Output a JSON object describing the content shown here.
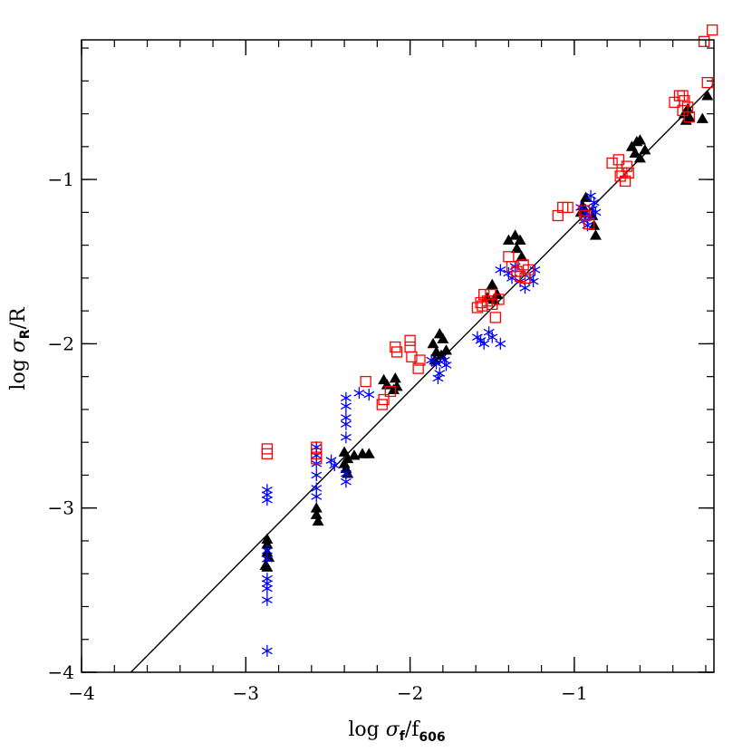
{
  "chart_data": {
    "type": "scatter",
    "xlabel": {
      "prefix": "log ",
      "greek": "σ",
      "sub1": "f",
      "mid": "/f",
      "sub2": "606"
    },
    "ylabel": {
      "prefix": "log ",
      "greek": "σ",
      "sub1": "R",
      "mid": "/R"
    },
    "xlim": [
      -4,
      -0.15
    ],
    "ylim": [
      -4,
      -0.15
    ],
    "xticks": [
      -4,
      -3,
      -2,
      -1
    ],
    "xtick_labels": [
      "−4",
      "−3",
      "−2",
      "−1"
    ],
    "yticks": [
      -4,
      -3,
      -2,
      -1
    ],
    "ytick_labels": [
      "−4",
      "−3",
      "−2",
      "−1"
    ],
    "minor_step": 0.2,
    "grid": false,
    "legend": "none",
    "fit_line": {
      "x": [
        -3.7,
        -0.15
      ],
      "y": [
        -4.0,
        -0.42
      ],
      "color": "#000000"
    },
    "series": [
      {
        "marker": "triangle",
        "color": "#000000",
        "points": [
          [
            -2.87,
            -3.19
          ],
          [
            -2.87,
            -3.22
          ],
          [
            -2.87,
            -3.27
          ],
          [
            -2.86,
            -3.3
          ],
          [
            -2.88,
            -3.35
          ],
          [
            -2.87,
            -3.36
          ],
          [
            -2.57,
            -3.0
          ],
          [
            -2.57,
            -3.04
          ],
          [
            -2.56,
            -3.08
          ],
          [
            -2.4,
            -2.66
          ],
          [
            -2.38,
            -2.7
          ],
          [
            -2.4,
            -2.73
          ],
          [
            -2.39,
            -2.76
          ],
          [
            -2.38,
            -2.79
          ],
          [
            -2.34,
            -2.68
          ],
          [
            -2.29,
            -2.67
          ],
          [
            -2.25,
            -2.67
          ],
          [
            -2.16,
            -2.22
          ],
          [
            -2.14,
            -2.25
          ],
          [
            -2.09,
            -2.21
          ],
          [
            -2.08,
            -2.26
          ],
          [
            -2.1,
            -2.28
          ],
          [
            -1.82,
            -1.94
          ],
          [
            -1.8,
            -1.97
          ],
          [
            -1.86,
            -2.0
          ],
          [
            -1.84,
            -2.05
          ],
          [
            -1.85,
            -2.1
          ],
          [
            -1.81,
            -2.07
          ],
          [
            -1.78,
            -2.04
          ],
          [
            -1.5,
            -1.64
          ],
          [
            -1.47,
            -1.7
          ],
          [
            -1.53,
            -1.72
          ],
          [
            -1.49,
            -1.73
          ],
          [
            -1.4,
            -1.37
          ],
          [
            -1.36,
            -1.34
          ],
          [
            -1.33,
            -1.37
          ],
          [
            -1.35,
            -1.42
          ],
          [
            -1.32,
            -1.47
          ],
          [
            -0.93,
            -1.11
          ],
          [
            -0.95,
            -1.16
          ],
          [
            -0.96,
            -1.2
          ],
          [
            -0.89,
            -1.22
          ],
          [
            -0.88,
            -1.28
          ],
          [
            -0.87,
            -1.34
          ],
          [
            -0.65,
            -0.8
          ],
          [
            -0.62,
            -0.77
          ],
          [
            -0.6,
            -0.76
          ],
          [
            -0.63,
            -0.84
          ],
          [
            -0.6,
            -0.87
          ],
          [
            -0.57,
            -0.82
          ],
          [
            -0.33,
            -0.6
          ],
          [
            -0.31,
            -0.57
          ],
          [
            -0.3,
            -0.62
          ],
          [
            -0.32,
            -0.64
          ],
          [
            -0.22,
            -0.63
          ],
          [
            -0.19,
            -0.49
          ]
        ]
      },
      {
        "marker": "asterisk",
        "color": "#0000ff",
        "points": [
          [
            -2.87,
            -2.89
          ],
          [
            -2.87,
            -2.92
          ],
          [
            -2.87,
            -2.95
          ],
          [
            -2.87,
            -3.26
          ],
          [
            -2.87,
            -3.31
          ],
          [
            -2.87,
            -3.43
          ],
          [
            -2.87,
            -3.46
          ],
          [
            -2.87,
            -3.49
          ],
          [
            -2.87,
            -3.56
          ],
          [
            -2.87,
            -3.87
          ],
          [
            -2.57,
            -2.63
          ],
          [
            -2.57,
            -2.68
          ],
          [
            -2.57,
            -2.73
          ],
          [
            -2.57,
            -2.8
          ],
          [
            -2.57,
            -2.88
          ],
          [
            -2.57,
            -2.93
          ],
          [
            -2.48,
            -2.71
          ],
          [
            -2.46,
            -2.74
          ],
          [
            -2.39,
            -2.33
          ],
          [
            -2.39,
            -2.38
          ],
          [
            -2.39,
            -2.45
          ],
          [
            -2.39,
            -2.49
          ],
          [
            -2.39,
            -2.57
          ],
          [
            -2.39,
            -2.79
          ],
          [
            -2.39,
            -2.84
          ],
          [
            -2.31,
            -2.3
          ],
          [
            -2.25,
            -2.31
          ],
          [
            -1.87,
            -2.1
          ],
          [
            -1.84,
            -2.12
          ],
          [
            -1.82,
            -2.18
          ],
          [
            -1.83,
            -2.21
          ],
          [
            -1.78,
            -2.13
          ],
          [
            -1.79,
            -2.1
          ],
          [
            -1.59,
            -1.96
          ],
          [
            -1.57,
            -1.98
          ],
          [
            -1.55,
            -2.0
          ],
          [
            -1.52,
            -1.93
          ],
          [
            -1.5,
            -1.96
          ],
          [
            -1.45,
            -2.0
          ],
          [
            -1.45,
            -1.55
          ],
          [
            -1.4,
            -1.57
          ],
          [
            -1.38,
            -1.6
          ],
          [
            -1.36,
            -1.53
          ],
          [
            -1.33,
            -1.62
          ],
          [
            -1.3,
            -1.66
          ],
          [
            -1.27,
            -1.6
          ],
          [
            -1.25,
            -1.62
          ],
          [
            -1.24,
            -1.55
          ],
          [
            -0.96,
            -1.17
          ],
          [
            -0.93,
            -1.2
          ],
          [
            -0.94,
            -1.25
          ],
          [
            -0.92,
            -1.28
          ],
          [
            -0.91,
            -1.22
          ],
          [
            -0.89,
            -1.18
          ],
          [
            -0.9,
            -1.1
          ],
          [
            -0.88,
            -1.14
          ],
          [
            -0.87,
            -1.2
          ]
        ]
      },
      {
        "marker": "square",
        "color": "#ff0000",
        "points": [
          [
            -2.87,
            -2.64
          ],
          [
            -2.87,
            -2.67
          ],
          [
            -2.57,
            -2.63
          ],
          [
            -2.57,
            -2.67
          ],
          [
            -2.57,
            -2.7
          ],
          [
            -2.27,
            -2.23
          ],
          [
            -2.16,
            -2.34
          ],
          [
            -2.17,
            -2.37
          ],
          [
            -2.12,
            -2.29
          ],
          [
            -2.09,
            -2.02
          ],
          [
            -2.08,
            -2.05
          ],
          [
            -2.0,
            -1.98
          ],
          [
            -2.0,
            -2.02
          ],
          [
            -1.99,
            -2.08
          ],
          [
            -1.95,
            -2.15
          ],
          [
            -1.94,
            -2.1
          ],
          [
            -1.59,
            -1.78
          ],
          [
            -1.57,
            -1.75
          ],
          [
            -1.55,
            -1.7
          ],
          [
            -1.56,
            -1.77
          ],
          [
            -1.53,
            -1.74
          ],
          [
            -1.51,
            -1.7
          ],
          [
            -1.5,
            -1.76
          ],
          [
            -1.48,
            -1.84
          ],
          [
            -1.46,
            -1.73
          ],
          [
            -1.4,
            -1.47
          ],
          [
            -1.38,
            -1.53
          ],
          [
            -1.35,
            -1.56
          ],
          [
            -1.33,
            -1.59
          ],
          [
            -1.31,
            -1.52
          ],
          [
            -1.3,
            -1.6
          ],
          [
            -1.28,
            -1.55
          ],
          [
            -1.1,
            -1.22
          ],
          [
            -1.07,
            -1.17
          ],
          [
            -1.04,
            -1.17
          ],
          [
            -0.94,
            -1.19
          ],
          [
            -0.93,
            -1.22
          ],
          [
            -0.91,
            -1.27
          ],
          [
            -0.77,
            -0.9
          ],
          [
            -0.73,
            -0.88
          ],
          [
            -0.71,
            -0.96
          ],
          [
            -0.72,
            -0.98
          ],
          [
            -0.69,
            -1.01
          ],
          [
            -0.68,
            -0.92
          ],
          [
            -0.67,
            -0.96
          ],
          [
            -0.39,
            -0.53
          ],
          [
            -0.36,
            -0.49
          ],
          [
            -0.34,
            -0.49
          ],
          [
            -0.33,
            -0.52
          ],
          [
            -0.34,
            -0.58
          ],
          [
            -0.31,
            -0.56
          ],
          [
            -0.3,
            -0.62
          ],
          [
            -0.21,
            -0.16
          ],
          [
            -0.19,
            -0.41
          ],
          [
            -0.16,
            -0.09
          ]
        ]
      }
    ]
  }
}
